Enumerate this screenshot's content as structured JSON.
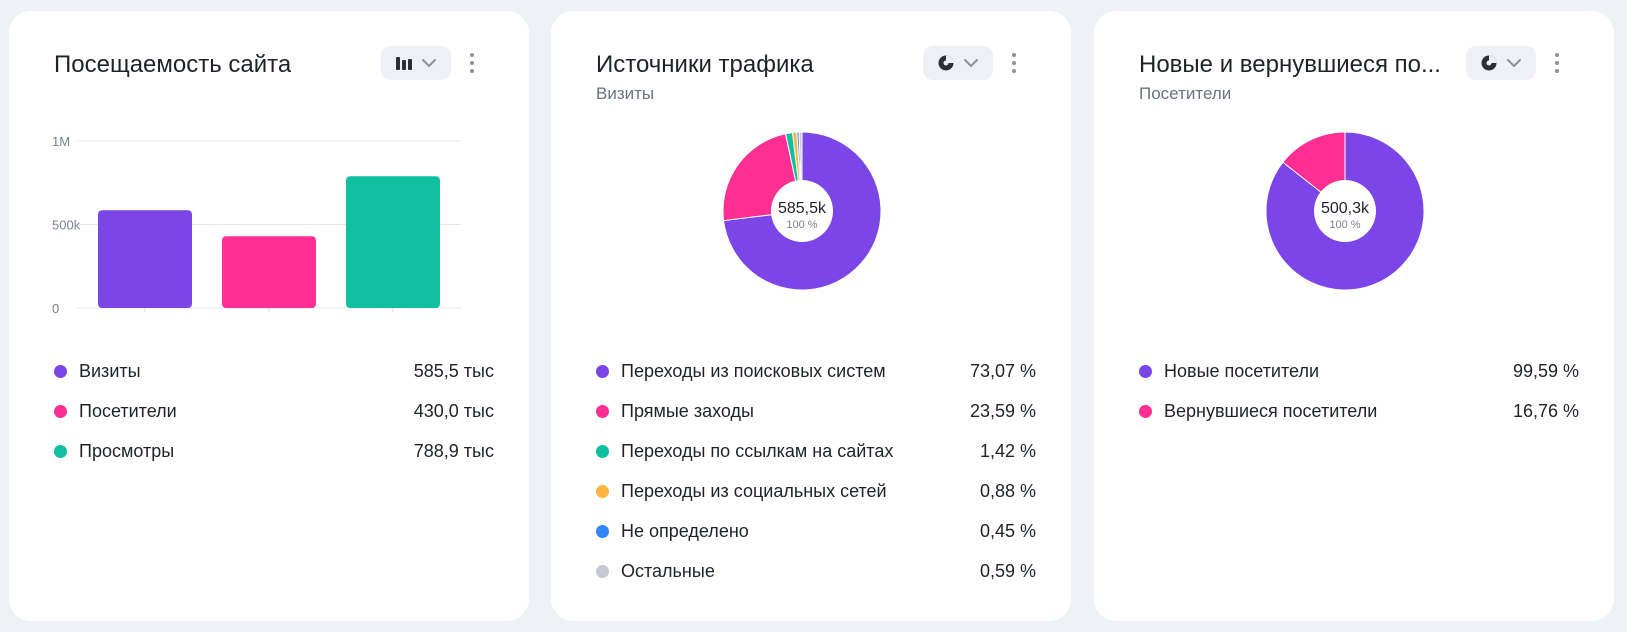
{
  "cards": [
    {
      "title": "Посещаемость сайта",
      "subtitle": "",
      "toggle_icon": "bar-chart-icon",
      "legend": [
        {
          "name": "Визиты",
          "value": "585,5 тыс",
          "color": "#7b45e7"
        },
        {
          "name": "Посетители",
          "value": "430,0 тыс",
          "color": "#ff2e93"
        },
        {
          "name": "Просмотры",
          "value": "788,9 тыс",
          "color": "#0fbf9f"
        }
      ]
    },
    {
      "title": "Источники трафика",
      "subtitle": "Визиты",
      "toggle_icon": "pie-chart-icon",
      "legend": [
        {
          "name": "Переходы из поисковых систем",
          "value": "73,07 %",
          "color": "#7b45e7"
        },
        {
          "name": "Прямые заходы",
          "value": "23,59 %",
          "color": "#ff2e93"
        },
        {
          "name": "Переходы по ссылкам на сайтах",
          "value": "1,42 %",
          "color": "#0fbf9f"
        },
        {
          "name": "Переходы из социальных сетей",
          "value": "0,88 %",
          "color": "#ffb340"
        },
        {
          "name": "Не определено",
          "value": "0,45 %",
          "color": "#2f86ff"
        },
        {
          "name": "Остальные",
          "value": "0,59 %",
          "color": "#c5c9d6"
        }
      ]
    },
    {
      "title": "Новые и вернувшиеся по...",
      "subtitle": "Посетители",
      "toggle_icon": "pie-chart-icon",
      "legend": [
        {
          "name": "Новые посетители",
          "value": "99,59 %",
          "color": "#7b45e7"
        },
        {
          "name": "Вернувшиеся посетители",
          "value": "16,76 %",
          "color": "#ff2e93"
        }
      ]
    }
  ],
  "chart_data": [
    {
      "type": "bar",
      "categories": [
        "Визиты",
        "Посетители",
        "Просмотры"
      ],
      "values": [
        585500,
        430000,
        788900
      ],
      "colors": [
        "#7b45e7",
        "#ff2e93",
        "#0fbf9f"
      ],
      "yticks": [
        {
          "value": 0,
          "label": "0"
        },
        {
          "value": 500000,
          "label": "500k"
        },
        {
          "value": 1000000,
          "label": "1M"
        }
      ],
      "ylim": [
        0,
        1000000
      ],
      "grid": true
    },
    {
      "type": "pie",
      "donut": true,
      "center_value": "585,5k",
      "center_percent": "100 %",
      "slices": [
        {
          "name": "Переходы из поисковых систем",
          "value": 73.07,
          "color": "#7b45e7"
        },
        {
          "name": "Прямые заходы",
          "value": 23.59,
          "color": "#ff2e93"
        },
        {
          "name": "Переходы по ссылкам на сайтах",
          "value": 1.42,
          "color": "#0fbf9f"
        },
        {
          "name": "Переходы из социальных сетей",
          "value": 0.88,
          "color": "#ffb340"
        },
        {
          "name": "Не определено",
          "value": 0.45,
          "color": "#2f86ff"
        },
        {
          "name": "Остальные",
          "value": 0.59,
          "color": "#c5c9d6"
        }
      ]
    },
    {
      "type": "pie",
      "donut": true,
      "center_value": "500,3k",
      "center_percent": "100 %",
      "slices": [
        {
          "name": "Новые посетители",
          "value": 99.59,
          "color": "#7b45e7"
        },
        {
          "name": "Вернувшиеся посетители",
          "value": 16.76,
          "color": "#ff2e93"
        }
      ]
    }
  ]
}
